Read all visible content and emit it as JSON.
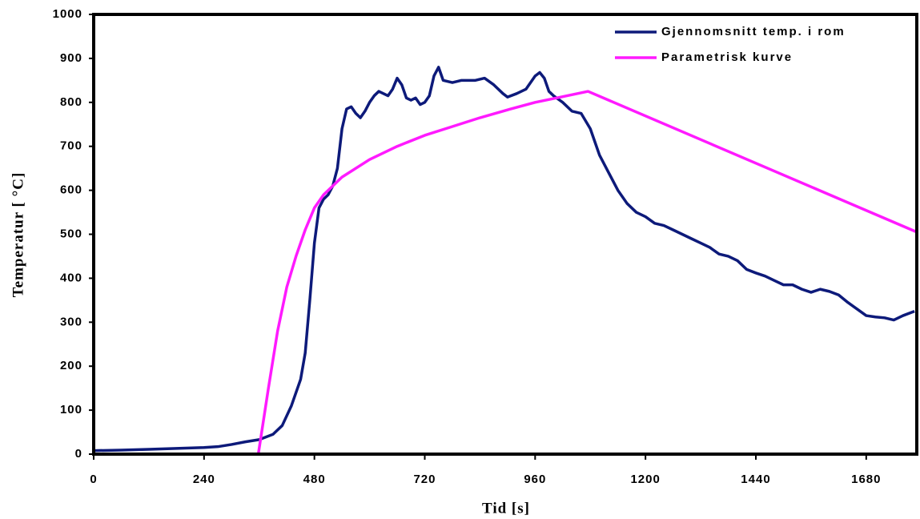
{
  "chart_data": {
    "type": "line",
    "xlabel": "Tid [s]",
    "ylabel": "Temperatur [ °C]",
    "xlim": [
      0,
      1790
    ],
    "ylim": [
      0,
      1000
    ],
    "xticks": [
      0,
      240,
      480,
      720,
      960,
      1200,
      1440,
      1680
    ],
    "yticks": [
      0,
      100,
      200,
      300,
      400,
      500,
      600,
      700,
      800,
      900,
      1000
    ],
    "legend": "upper right",
    "series": [
      {
        "name": "Gjennomsnitt temp. i rom",
        "color": "#0d1a7a",
        "x": [
          0,
          60,
          120,
          180,
          240,
          270,
          300,
          330,
          360,
          390,
          410,
          430,
          450,
          460,
          470,
          480,
          490,
          500,
          510,
          520,
          530,
          540,
          550,
          560,
          570,
          580,
          590,
          600,
          610,
          620,
          630,
          640,
          650,
          660,
          670,
          680,
          690,
          700,
          710,
          720,
          730,
          740,
          750,
          760,
          780,
          800,
          830,
          850,
          870,
          890,
          900,
          920,
          940,
          960,
          970,
          980,
          990,
          1000,
          1020,
          1040,
          1060,
          1080,
          1100,
          1120,
          1140,
          1160,
          1180,
          1200,
          1220,
          1240,
          1260,
          1280,
          1300,
          1320,
          1340,
          1360,
          1380,
          1400,
          1420,
          1440,
          1460,
          1480,
          1500,
          1520,
          1540,
          1560,
          1580,
          1600,
          1620,
          1640,
          1660,
          1680,
          1700,
          1720,
          1740,
          1760,
          1785
        ],
        "values": [
          8,
          9,
          11,
          13,
          15,
          17,
          22,
          28,
          33,
          45,
          65,
          110,
          170,
          230,
          350,
          480,
          560,
          580,
          590,
          610,
          650,
          740,
          785,
          790,
          775,
          765,
          780,
          800,
          815,
          825,
          820,
          815,
          830,
          855,
          840,
          810,
          805,
          810,
          795,
          800,
          815,
          860,
          880,
          850,
          845,
          850,
          850,
          855,
          840,
          820,
          812,
          820,
          830,
          860,
          868,
          855,
          825,
          815,
          800,
          780,
          775,
          740,
          680,
          640,
          600,
          570,
          550,
          540,
          525,
          520,
          510,
          500,
          490,
          480,
          470,
          455,
          450,
          440,
          420,
          412,
          405,
          395,
          385,
          385,
          375,
          368,
          375,
          370,
          362,
          345,
          330,
          315,
          312,
          310,
          305,
          315,
          325
        ]
      },
      {
        "name": "Parametrisk kurve",
        "color": "#ff1aff",
        "x": [
          358,
          380,
          400,
          420,
          440,
          460,
          480,
          500,
          540,
          600,
          660,
          720,
          780,
          840,
          900,
          960,
          1020,
          1075,
          1790
        ],
        "values": [
          0,
          150,
          280,
          380,
          450,
          510,
          560,
          590,
          630,
          670,
          700,
          725,
          745,
          765,
          783,
          800,
          813,
          825,
          505
        ]
      }
    ]
  }
}
